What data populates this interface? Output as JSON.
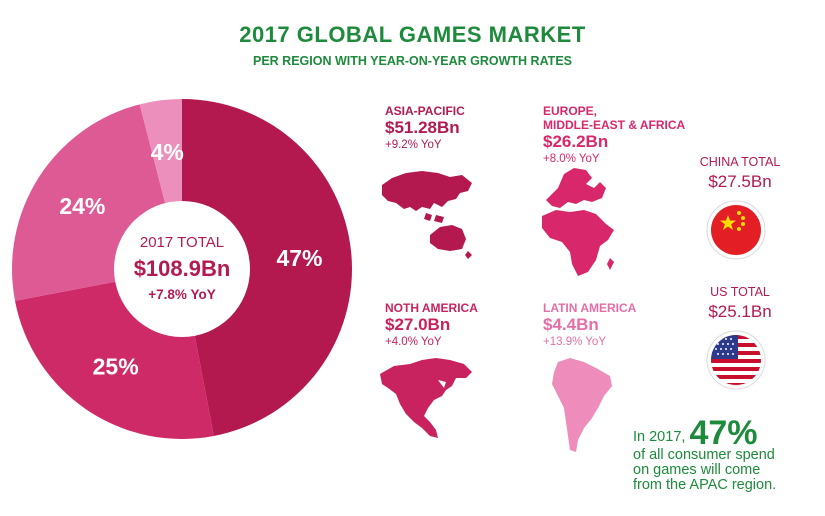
{
  "header": {
    "title": "2017 GLOBAL GAMES MARKET",
    "subtitle": "PER REGION WITH YEAR-ON-YEAR GROWTH RATES"
  },
  "chart_data": {
    "type": "pie",
    "title": "2017 GLOBAL GAMES MARKET",
    "subtitle": "PER REGION WITH YEAR-ON-YEAR GROWTH RATES",
    "center": {
      "label": "2017 TOTAL",
      "value": "$108.9Bn",
      "growth": "+7.8% YoY"
    },
    "slices": [
      {
        "value": 47,
        "label": "47%",
        "color": "#b3184f"
      },
      {
        "value": 25,
        "label": "25%",
        "color": "#cf2a68"
      },
      {
        "value": 24,
        "label": "24%",
        "color": "#de5a95"
      },
      {
        "value": 4,
        "label": "4%",
        "color": "#ec8fbc"
      }
    ]
  },
  "regions": {
    "apac": {
      "name": "ASIA-PACIFIC",
      "value": "$51.28Bn",
      "yoy": "+9.2% YoY",
      "color": "#b3184f"
    },
    "emea": {
      "name_line1": "EUROPE,",
      "name_line2": "MIDDLE-EAST & AFRICA",
      "value": "$26.2Bn",
      "yoy": "+8.0% YoY",
      "color": "#d8286b"
    },
    "na": {
      "name": "NOTH AMERICA",
      "value": "$27.0Bn",
      "yoy": "+4.0% YoY",
      "color": "#c8235f"
    },
    "latam": {
      "name": "LATIN AMERICA",
      "value": "$4.4Bn",
      "yoy": "+13.9% YoY",
      "color": "#ee8cbb"
    }
  },
  "countries": {
    "china": {
      "name": "CHINA TOTAL",
      "value": "$27.5Bn",
      "icon": "china-flag-icon"
    },
    "us": {
      "name": "US TOTAL",
      "value": "$25.1Bn",
      "icon": "us-flag-icon"
    }
  },
  "note": {
    "prefix": "In 2017,",
    "highlight": "47%",
    "line1": "of all consumer spend",
    "line2": "on games will come",
    "line3": "from the APAC region."
  }
}
